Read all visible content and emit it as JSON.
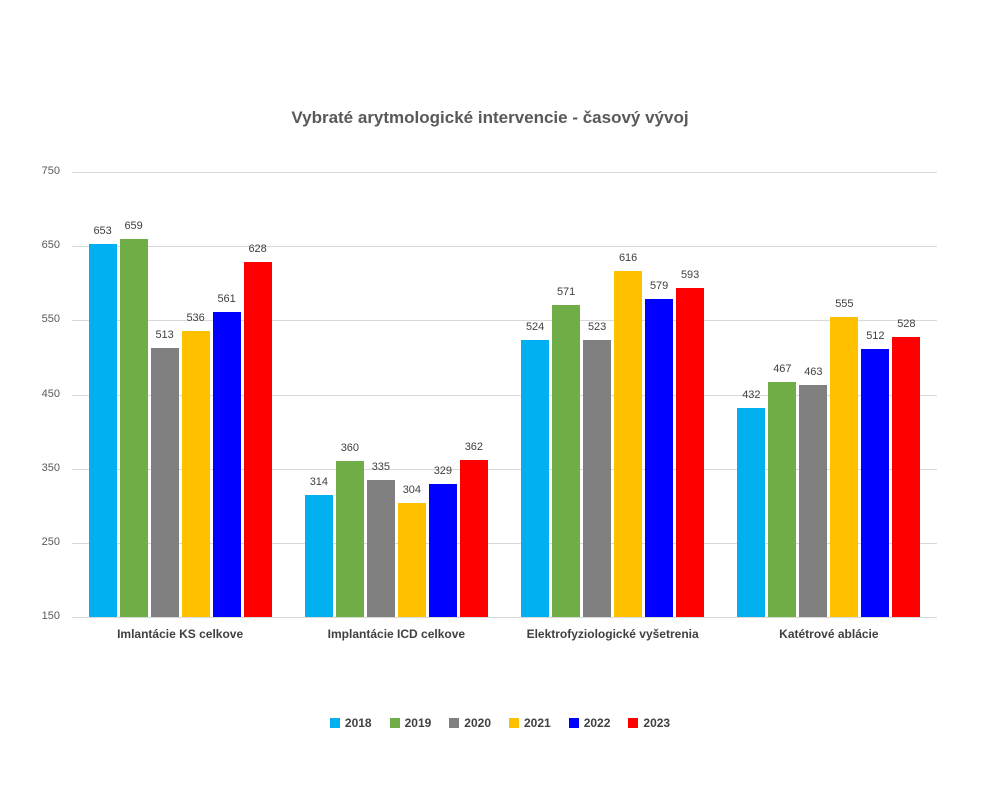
{
  "chart_data": {
    "type": "bar",
    "title": "Vybraté arytmologické intervencie - časový vývoj",
    "categories": [
      "Imlantácie KS celkove",
      "Implantácie ICD celkove",
      "Elektrofyziologické vyšetrenia",
      "Katétrové ablácie"
    ],
    "series": [
      {
        "name": "2018",
        "color": "#00B0F0",
        "values": [
          653,
          314,
          524,
          432
        ]
      },
      {
        "name": "2019",
        "color": "#70AD47",
        "values": [
          659,
          360,
          571,
          467
        ]
      },
      {
        "name": "2020",
        "color": "#808080",
        "values": [
          513,
          335,
          523,
          463
        ]
      },
      {
        "name": "2021",
        "color": "#FFC000",
        "values": [
          536,
          304,
          616,
          555
        ]
      },
      {
        "name": "2022",
        "color": "#0000FF",
        "values": [
          561,
          329,
          579,
          512
        ]
      },
      {
        "name": "2023",
        "color": "#FF0000",
        "values": [
          628,
          362,
          593,
          528
        ]
      }
    ],
    "ylim": [
      150,
      750
    ],
    "yticks": [
      150,
      250,
      350,
      450,
      550,
      650,
      750
    ],
    "ytick_step": 100,
    "grid": "horizontal",
    "gridline_color": "#D9D9D9",
    "axis_text_color": "#595959",
    "label_text_color": "#404040",
    "legend_position": "bottom",
    "data_labels": "above bars"
  }
}
